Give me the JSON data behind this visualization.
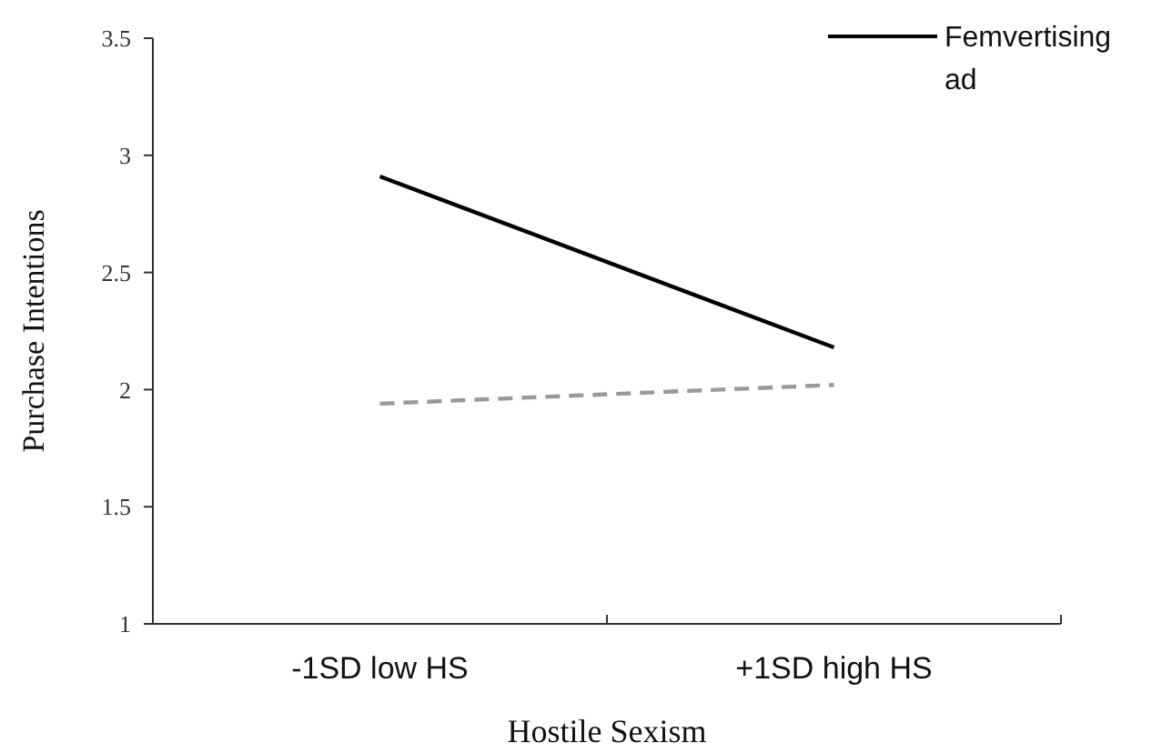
{
  "chart_data": {
    "type": "line",
    "xlabel": "Hostile Sexism",
    "ylabel": "Purchase Intentions",
    "categories": [
      "-1SD low HS",
      "+1SD high HS"
    ],
    "series": [
      {
        "name": "Femvertising ad",
        "color": "#000000",
        "values": [
          2.91,
          2.18
        ],
        "line_style": "solid"
      },
      {
        "color": "#999999",
        "values": [
          1.94,
          2.02
        ],
        "line_style": "dashed"
      }
    ],
    "ylim": [
      1,
      3.5
    ],
    "yticks": [
      1,
      1.5,
      2,
      2.5,
      3,
      3.5
    ],
    "grid": false,
    "legend": "top right",
    "marker": "none"
  }
}
